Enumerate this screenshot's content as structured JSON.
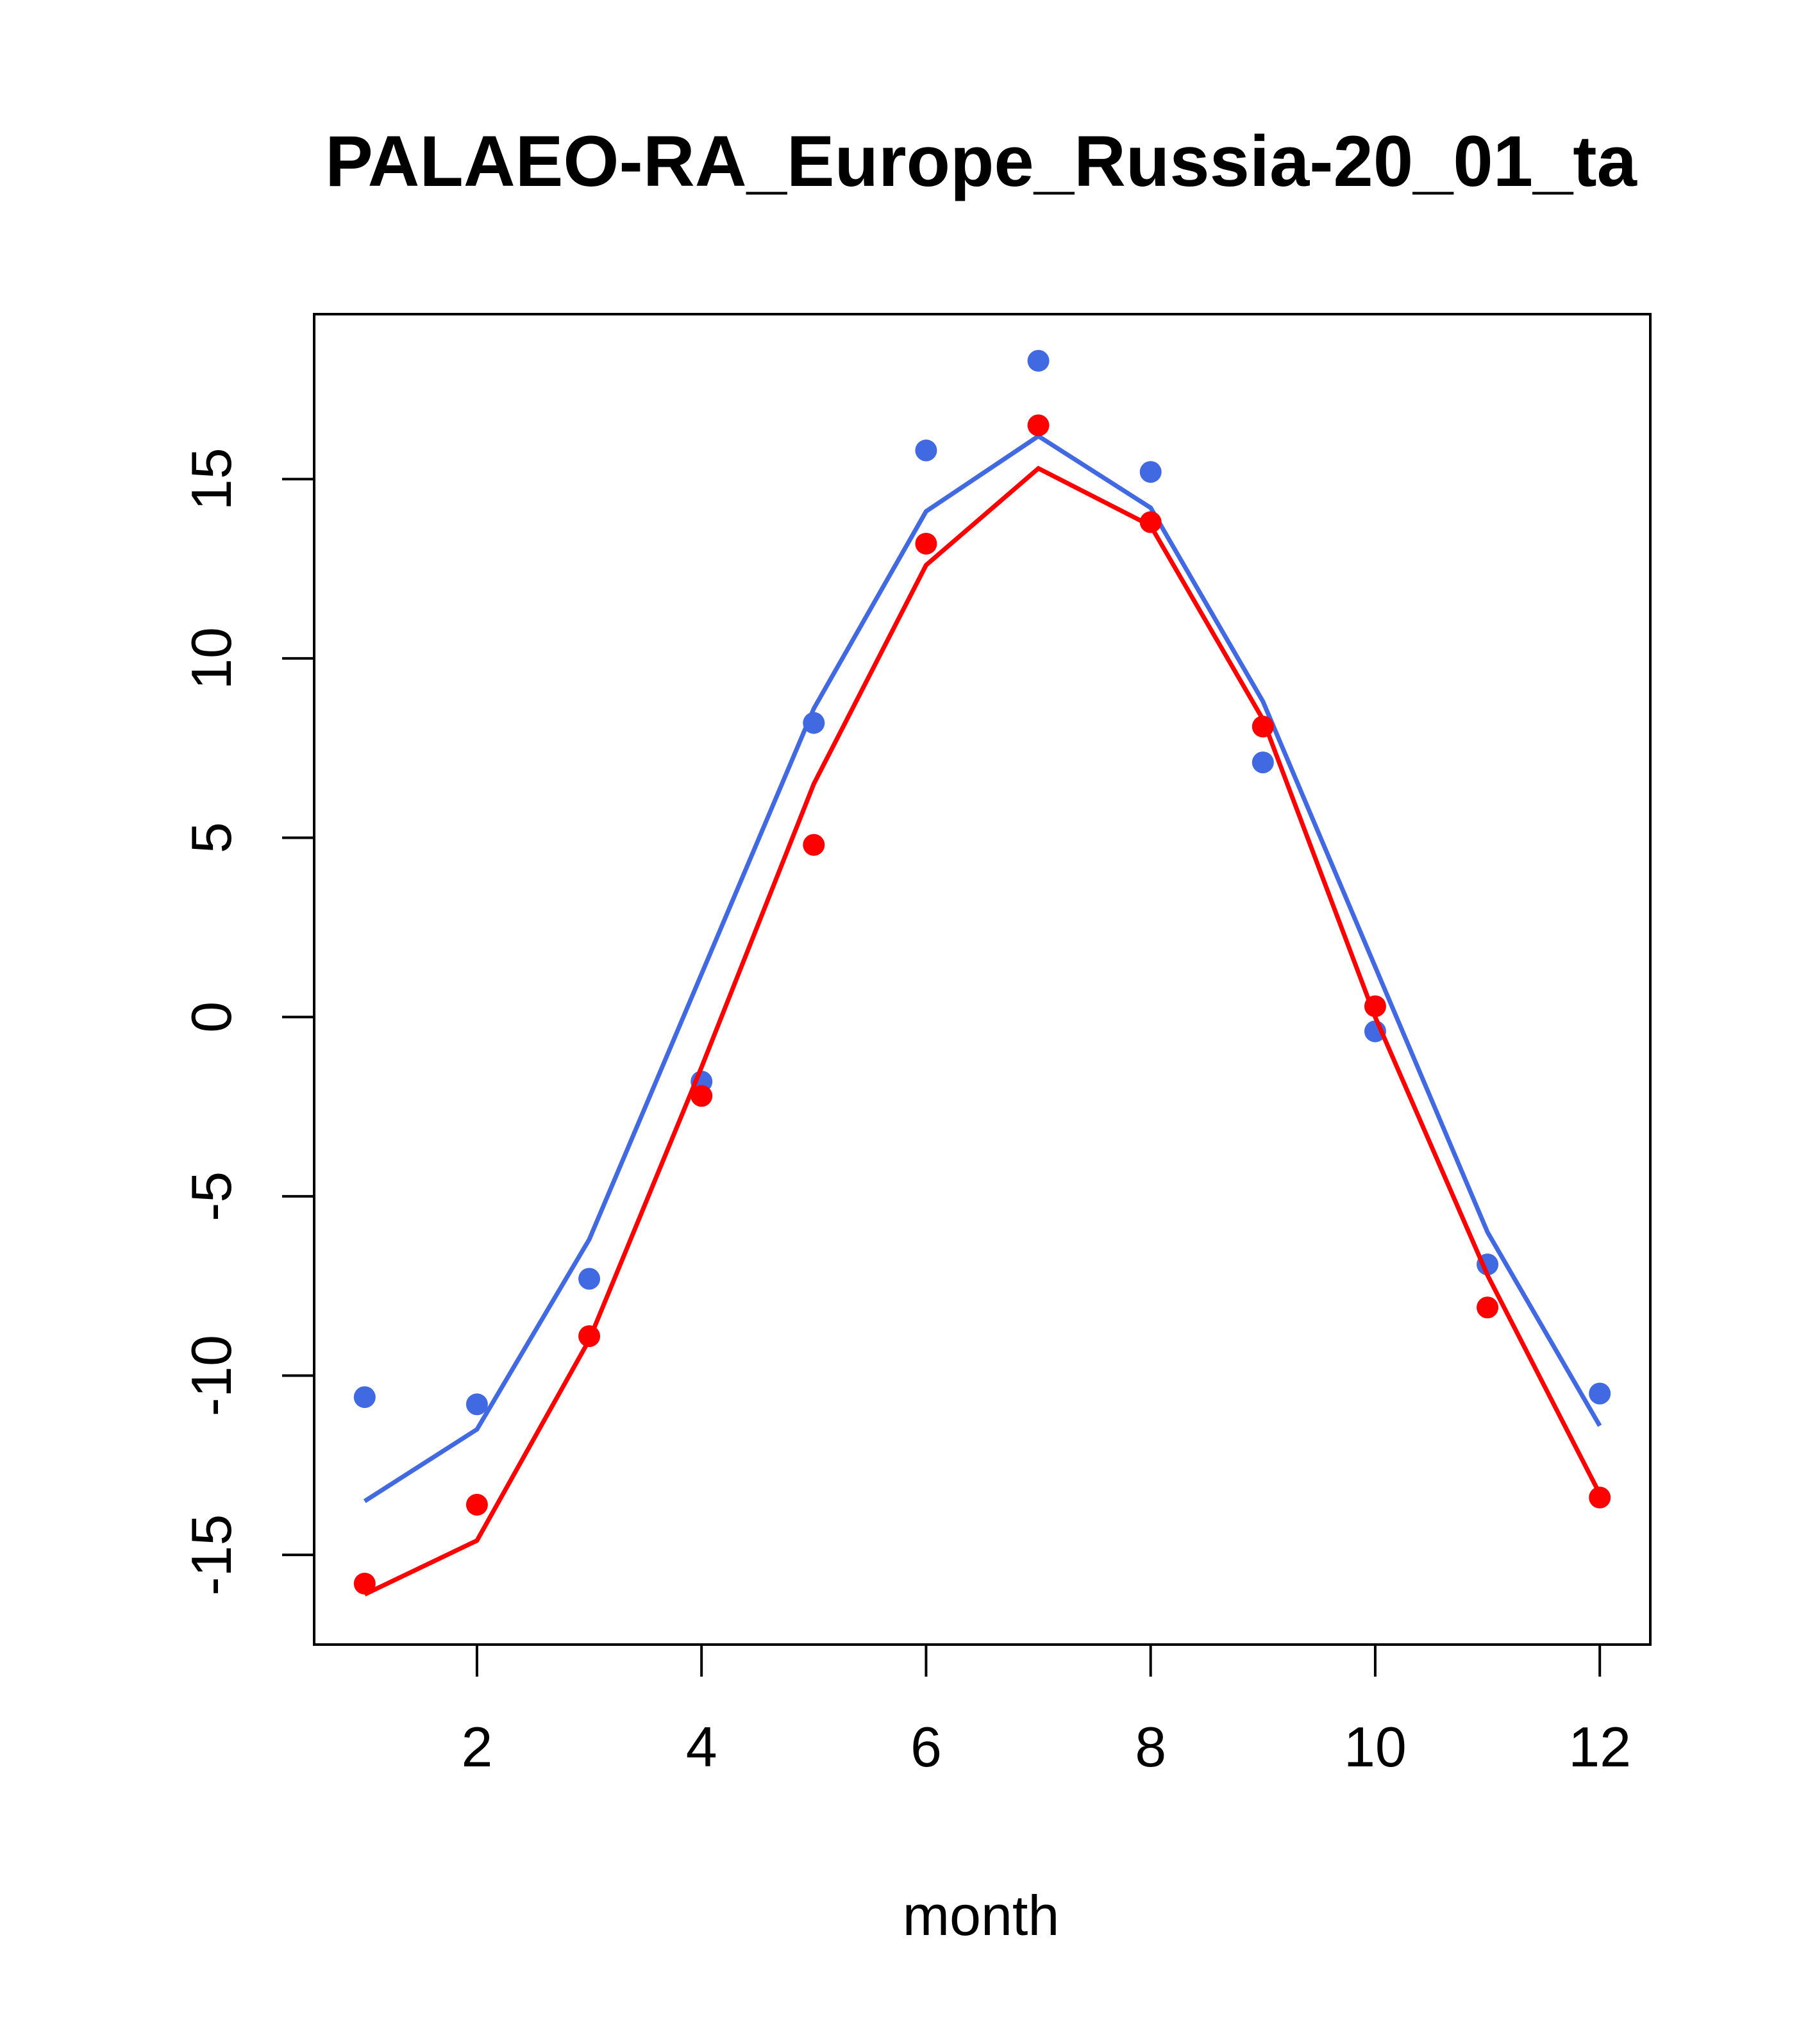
{
  "chart_data": {
    "type": "line",
    "title": "PALAEO-RA_Europe_Russia-20_01_ta",
    "xlabel": "month",
    "ylabel": "",
    "xlim": [
      0.55,
      12.45
    ],
    "ylim": [
      -17.5,
      19.6
    ],
    "x_ticks": [
      2,
      4,
      6,
      8,
      10,
      12
    ],
    "x_tick_labels": [
      "2",
      "4",
      "6",
      "8",
      "10",
      "12"
    ],
    "y_ticks": [
      -15,
      -10,
      -5,
      0,
      5,
      10,
      15
    ],
    "y_tick_labels": [
      "-15",
      "-10",
      "-5",
      "0",
      "5",
      "10",
      "15"
    ],
    "grid": false,
    "x": [
      1,
      2,
      3,
      4,
      5,
      6,
      7,
      8,
      9,
      10,
      11,
      12
    ],
    "series": [
      {
        "color": "#4169e1",
        "line": [
          -13.5,
          -11.5,
          -6.2,
          1.2,
          8.6,
          14.1,
          16.2,
          14.2,
          8.8,
          1.4,
          -6.0,
          -11.4
        ],
        "points": [
          -10.6,
          -10.8,
          -7.3,
          -1.8,
          8.2,
          15.8,
          18.3,
          15.2,
          7.1,
          -0.4,
          -6.9,
          -10.5
        ]
      },
      {
        "color": "#ff0000",
        "line": [
          -16.1,
          -14.6,
          -9.0,
          -1.4,
          6.5,
          12.6,
          15.3,
          13.7,
          8.3,
          0.0,
          -7.2,
          -13.3
        ],
        "points": [
          -15.8,
          -13.6,
          -8.9,
          -2.2,
          4.8,
          13.2,
          16.5,
          13.8,
          8.1,
          0.3,
          -8.1,
          -13.4
        ]
      }
    ]
  }
}
